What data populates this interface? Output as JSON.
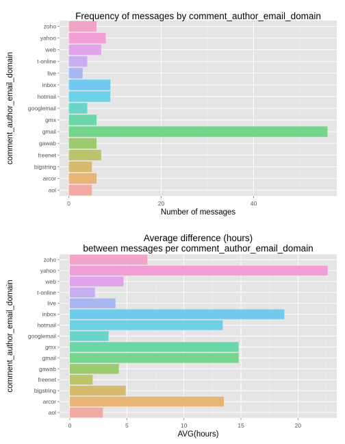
{
  "chart_data": [
    {
      "type": "bar",
      "orientation": "horizontal",
      "title": [
        "Frequency of messages by comment_author_email_domain"
      ],
      "xlabel": "Number of messages",
      "ylabel": "comment_author_email_domain",
      "categories": [
        "zoho",
        "yahoo",
        "web",
        "t-online",
        "live",
        "inbox",
        "hotmail",
        "googlemail",
        "gmx",
        "gmail",
        "gawab",
        "freenet",
        "bigstring",
        "arcor",
        "aol"
      ],
      "values": [
        6,
        8,
        7,
        4,
        3,
        9,
        9,
        4,
        6,
        56,
        6,
        7,
        5,
        6,
        5
      ],
      "xlim": [
        -2,
        58
      ],
      "xticks": [
        0,
        20,
        40
      ],
      "grid": true,
      "colors": [
        "#F4A3C8",
        "#F49ED8",
        "#E3A3EC",
        "#C9AEF4",
        "#A7B7F4",
        "#6FCBEF",
        "#6CD1E6",
        "#6AD5C9",
        "#6AD7A8",
        "#73D68A",
        "#9CCB6E",
        "#BBC46A",
        "#D5BB6B",
        "#E8B574",
        "#F2AAA2"
      ]
    },
    {
      "type": "bar",
      "orientation": "horizontal",
      "title": [
        "Average difference (hours)",
        "between messages per comment_author_email_domain"
      ],
      "xlabel": "AVG(hours)",
      "ylabel": "comment_author_email_domain",
      "categories": [
        "zoho",
        "yahoo",
        "web",
        "t-online",
        "live",
        "inbox",
        "hotmail",
        "googlemail",
        "gmx",
        "gmail",
        "gawab",
        "freenet",
        "bigstring",
        "arcor",
        "aol"
      ],
      "values": [
        6.8,
        22.6,
        4.7,
        2.2,
        4.0,
        18.8,
        13.4,
        3.4,
        14.8,
        14.8,
        4.3,
        2.0,
        4.9,
        13.5,
        2.9
      ],
      "xlim": [
        -0.9,
        23.4
      ],
      "xticks": [
        0,
        5,
        10,
        15,
        20
      ],
      "grid": true,
      "colors": [
        "#F4A3C8",
        "#F49ED8",
        "#E3A3EC",
        "#C9AEF4",
        "#A7B7F4",
        "#6FCBEF",
        "#6CD1E6",
        "#6AD5C9",
        "#6AD7A8",
        "#73D68A",
        "#9CCB6E",
        "#BBC46A",
        "#D5BB6B",
        "#E8B574",
        "#F2AAA2"
      ]
    }
  ]
}
